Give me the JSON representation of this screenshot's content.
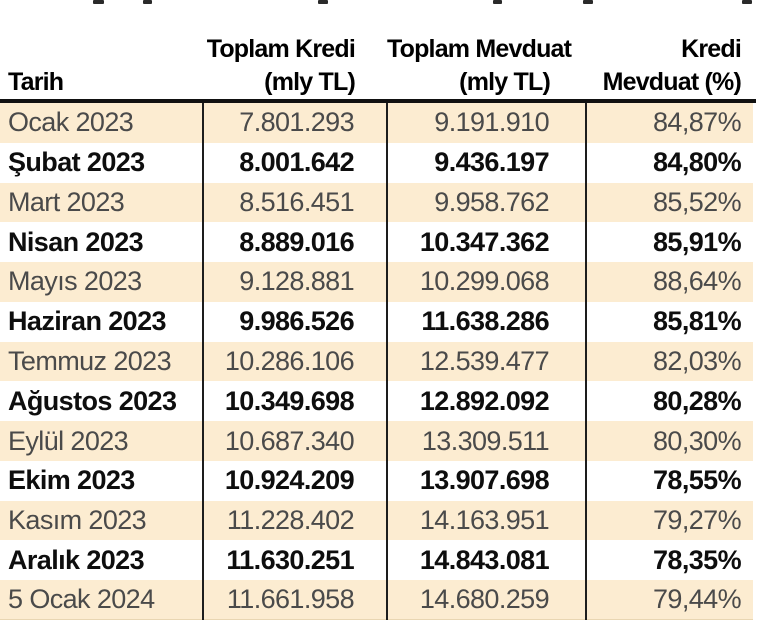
{
  "colors": {
    "stripe_row_bg": "#fcecd1",
    "bold_row_bg": "#ffffff",
    "border": "#1d1d1d",
    "regular_text": "#4a4a4a",
    "bold_text": "#0e0e0e"
  },
  "header": {
    "columns": [
      {
        "line1": "",
        "line2": "Tarih"
      },
      {
        "line1": "Toplam Kredi",
        "line2": "(mly TL)"
      },
      {
        "line1": "Toplam Mevduat",
        "line2": "(mly TL)"
      },
      {
        "line1": "Kredi",
        "line2": "Mevduat (%)"
      }
    ]
  },
  "chart_data": {
    "type": "table",
    "title": "",
    "columns": [
      "Tarih",
      "Toplam Kredi (mly TL)",
      "Toplam Mevduat (mly TL)",
      "Kredi Mevduat (%)"
    ],
    "rows": [
      [
        "Ocak 2023",
        "7.801.293",
        "9.191.910",
        "84,87%"
      ],
      [
        "Şubat 2023",
        "8.001.642",
        "9.436.197",
        "84,80%"
      ],
      [
        "Mart 2023",
        "8.516.451",
        "9.958.762",
        "85,52%"
      ],
      [
        "Nisan 2023",
        "8.889.016",
        "10.347.362",
        "85,91%"
      ],
      [
        "Mayıs 2023",
        "9.128.881",
        "10.299.068",
        "88,64%"
      ],
      [
        "Haziran 2023",
        "9.986.526",
        "11.638.286",
        "85,81%"
      ],
      [
        "Temmuz 2023",
        "10.286.106",
        "12.539.477",
        "82,03%"
      ],
      [
        "Ağustos 2023",
        "10.349.698",
        "12.892.092",
        "80,28%"
      ],
      [
        "Eylül 2023",
        "10.687.340",
        "13.309.511",
        "80,30%"
      ],
      [
        "Ekim 2023",
        "10.924.209",
        "13.907.698",
        "78,55%"
      ],
      [
        "Kasım 2023",
        "11.228.402",
        "14.163.951",
        "79,27%"
      ],
      [
        "Aralık 2023",
        "11.630.251",
        "14.843.081",
        "78,35%"
      ],
      [
        "5 Ocak 2024",
        "11.661.958",
        "14.680.259",
        "79,44%"
      ]
    ]
  }
}
